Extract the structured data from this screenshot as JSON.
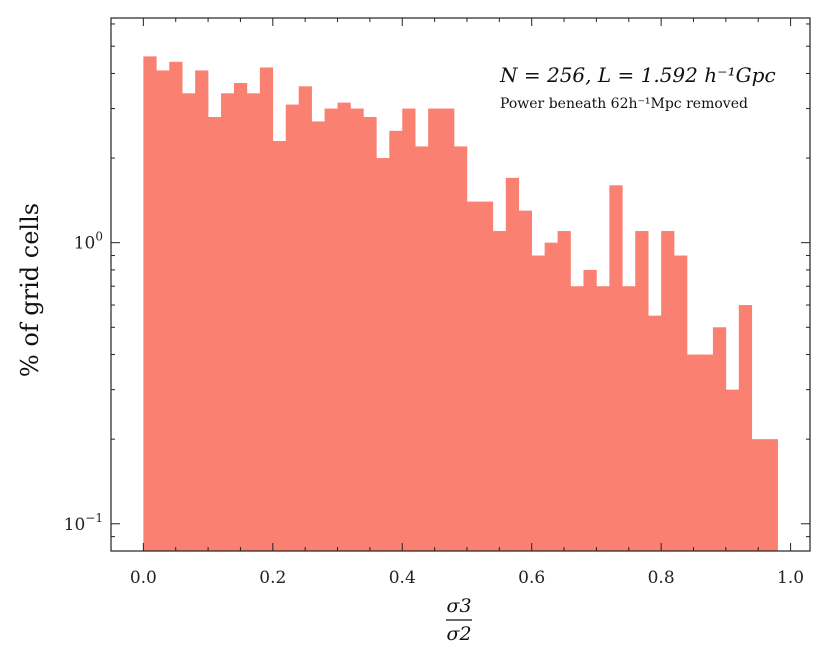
{
  "chart_data": {
    "type": "bar",
    "subtype": "histogram",
    "ylabel": "% of grid cells",
    "xlabel_numerator": "σ3",
    "xlabel_denominator": "σ2",
    "yscale": "log",
    "xlim": [
      -0.05,
      1.03
    ],
    "ylim": [
      0.08,
      6.3
    ],
    "x_ticks": [
      "0.0",
      "0.2",
      "0.4",
      "0.6",
      "0.8",
      "1.0"
    ],
    "y_ticks": [
      {
        "value": 0.1,
        "base": "10",
        "exp": "−1"
      },
      {
        "value": 1,
        "base": "10",
        "exp": "0"
      }
    ],
    "annotation_main": "N = 256,    L = 1.592 h⁻¹Gpc",
    "annotation_sub": "Power beneath 62h⁻¹Mpc removed",
    "bar_color": "#fa8072",
    "bin_edges": [
      0.0,
      0.02,
      0.04,
      0.06,
      0.08,
      0.1,
      0.12,
      0.14,
      0.16,
      0.18,
      0.2,
      0.22,
      0.24,
      0.26,
      0.28,
      0.3,
      0.32,
      0.34,
      0.36,
      0.38,
      0.4,
      0.42,
      0.44,
      0.46,
      0.48,
      0.5,
      0.52,
      0.54,
      0.56,
      0.58,
      0.6,
      0.62,
      0.64,
      0.66,
      0.68,
      0.7,
      0.72,
      0.74,
      0.76,
      0.78,
      0.8,
      0.82,
      0.84,
      0.86,
      0.88,
      0.9,
      0.92,
      0.94,
      0.96,
      0.98
    ],
    "values": [
      4.6,
      4.1,
      4.4,
      3.4,
      4.1,
      2.8,
      3.4,
      3.7,
      3.4,
      4.2,
      2.3,
      3.1,
      3.6,
      2.7,
      3.0,
      3.15,
      3.0,
      2.8,
      2.0,
      2.5,
      3.0,
      2.2,
      3.0,
      3.0,
      2.2,
      1.4,
      1.4,
      1.1,
      1.7,
      1.3,
      0.9,
      1.0,
      1.1,
      0.7,
      0.8,
      0.7,
      1.6,
      0.7,
      1.1,
      0.55,
      1.1,
      0.9,
      0.4,
      0.4,
      0.5,
      0.3,
      0.6,
      0.2,
      0.2
    ]
  }
}
